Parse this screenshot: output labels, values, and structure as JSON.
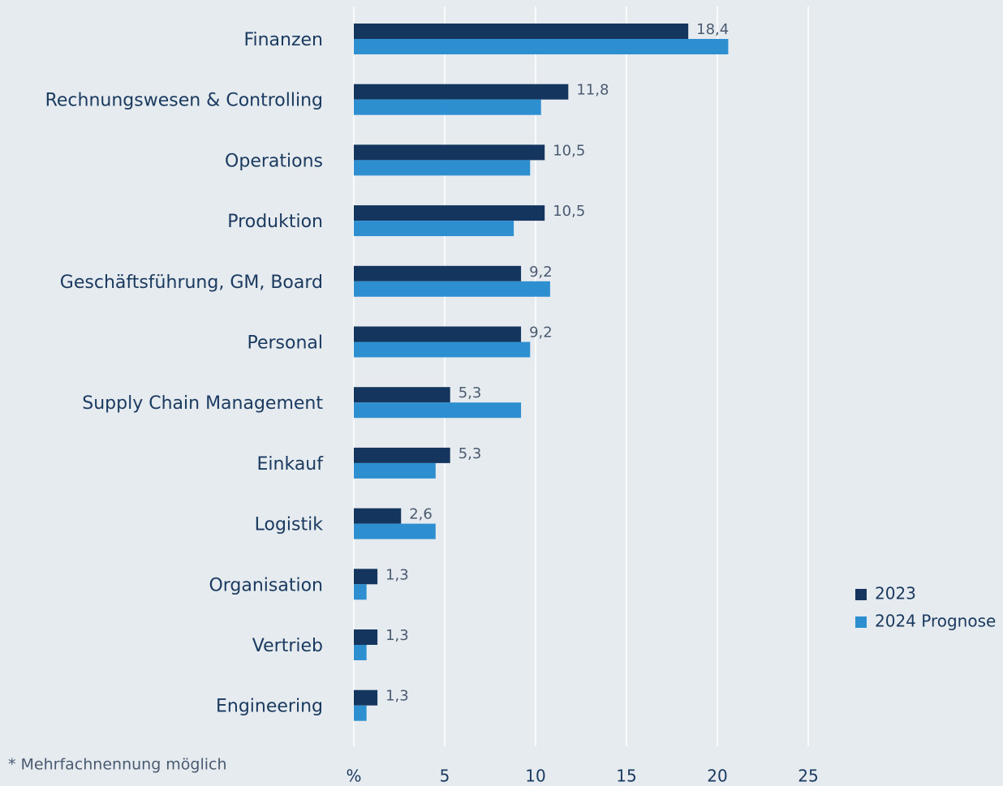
{
  "chart_data": {
    "type": "bar",
    "orientation": "horizontal",
    "categories": [
      "Finanzen",
      "Rechnungswesen & Controlling",
      "Operations",
      "Produktion",
      "Geschäftsführung, GM, Board",
      "Personal",
      "Supply Chain Management",
      "Einkauf",
      "Logistik",
      "Organisation",
      "Vertrieb",
      "Engineering"
    ],
    "series": [
      {
        "name": "2023",
        "color": "#14365e",
        "values": [
          18.4,
          11.8,
          10.5,
          10.5,
          9.2,
          9.2,
          5.3,
          5.3,
          2.6,
          1.3,
          1.3,
          1.3
        ],
        "value_labels": [
          "18,4",
          "11,8",
          "10,5",
          "10,5",
          "9,2",
          "9,2",
          "5,3",
          "5,3",
          "2,6",
          "1,3",
          "1,3",
          "1,3"
        ]
      },
      {
        "name": "2024 Prognose",
        "color": "#2e8fd0",
        "values": [
          20.6,
          10.3,
          9.7,
          8.8,
          10.8,
          9.7,
          9.2,
          4.5,
          4.5,
          0.7,
          0.7,
          0.7
        ]
      }
    ],
    "xlim": [
      0,
      25
    ],
    "xticks": [
      {
        "value": 0,
        "label": "%"
      },
      5,
      10,
      15,
      20,
      25
    ],
    "grid": true,
    "legend": "right",
    "footnote": "* Mehrfachnennung möglich"
  }
}
